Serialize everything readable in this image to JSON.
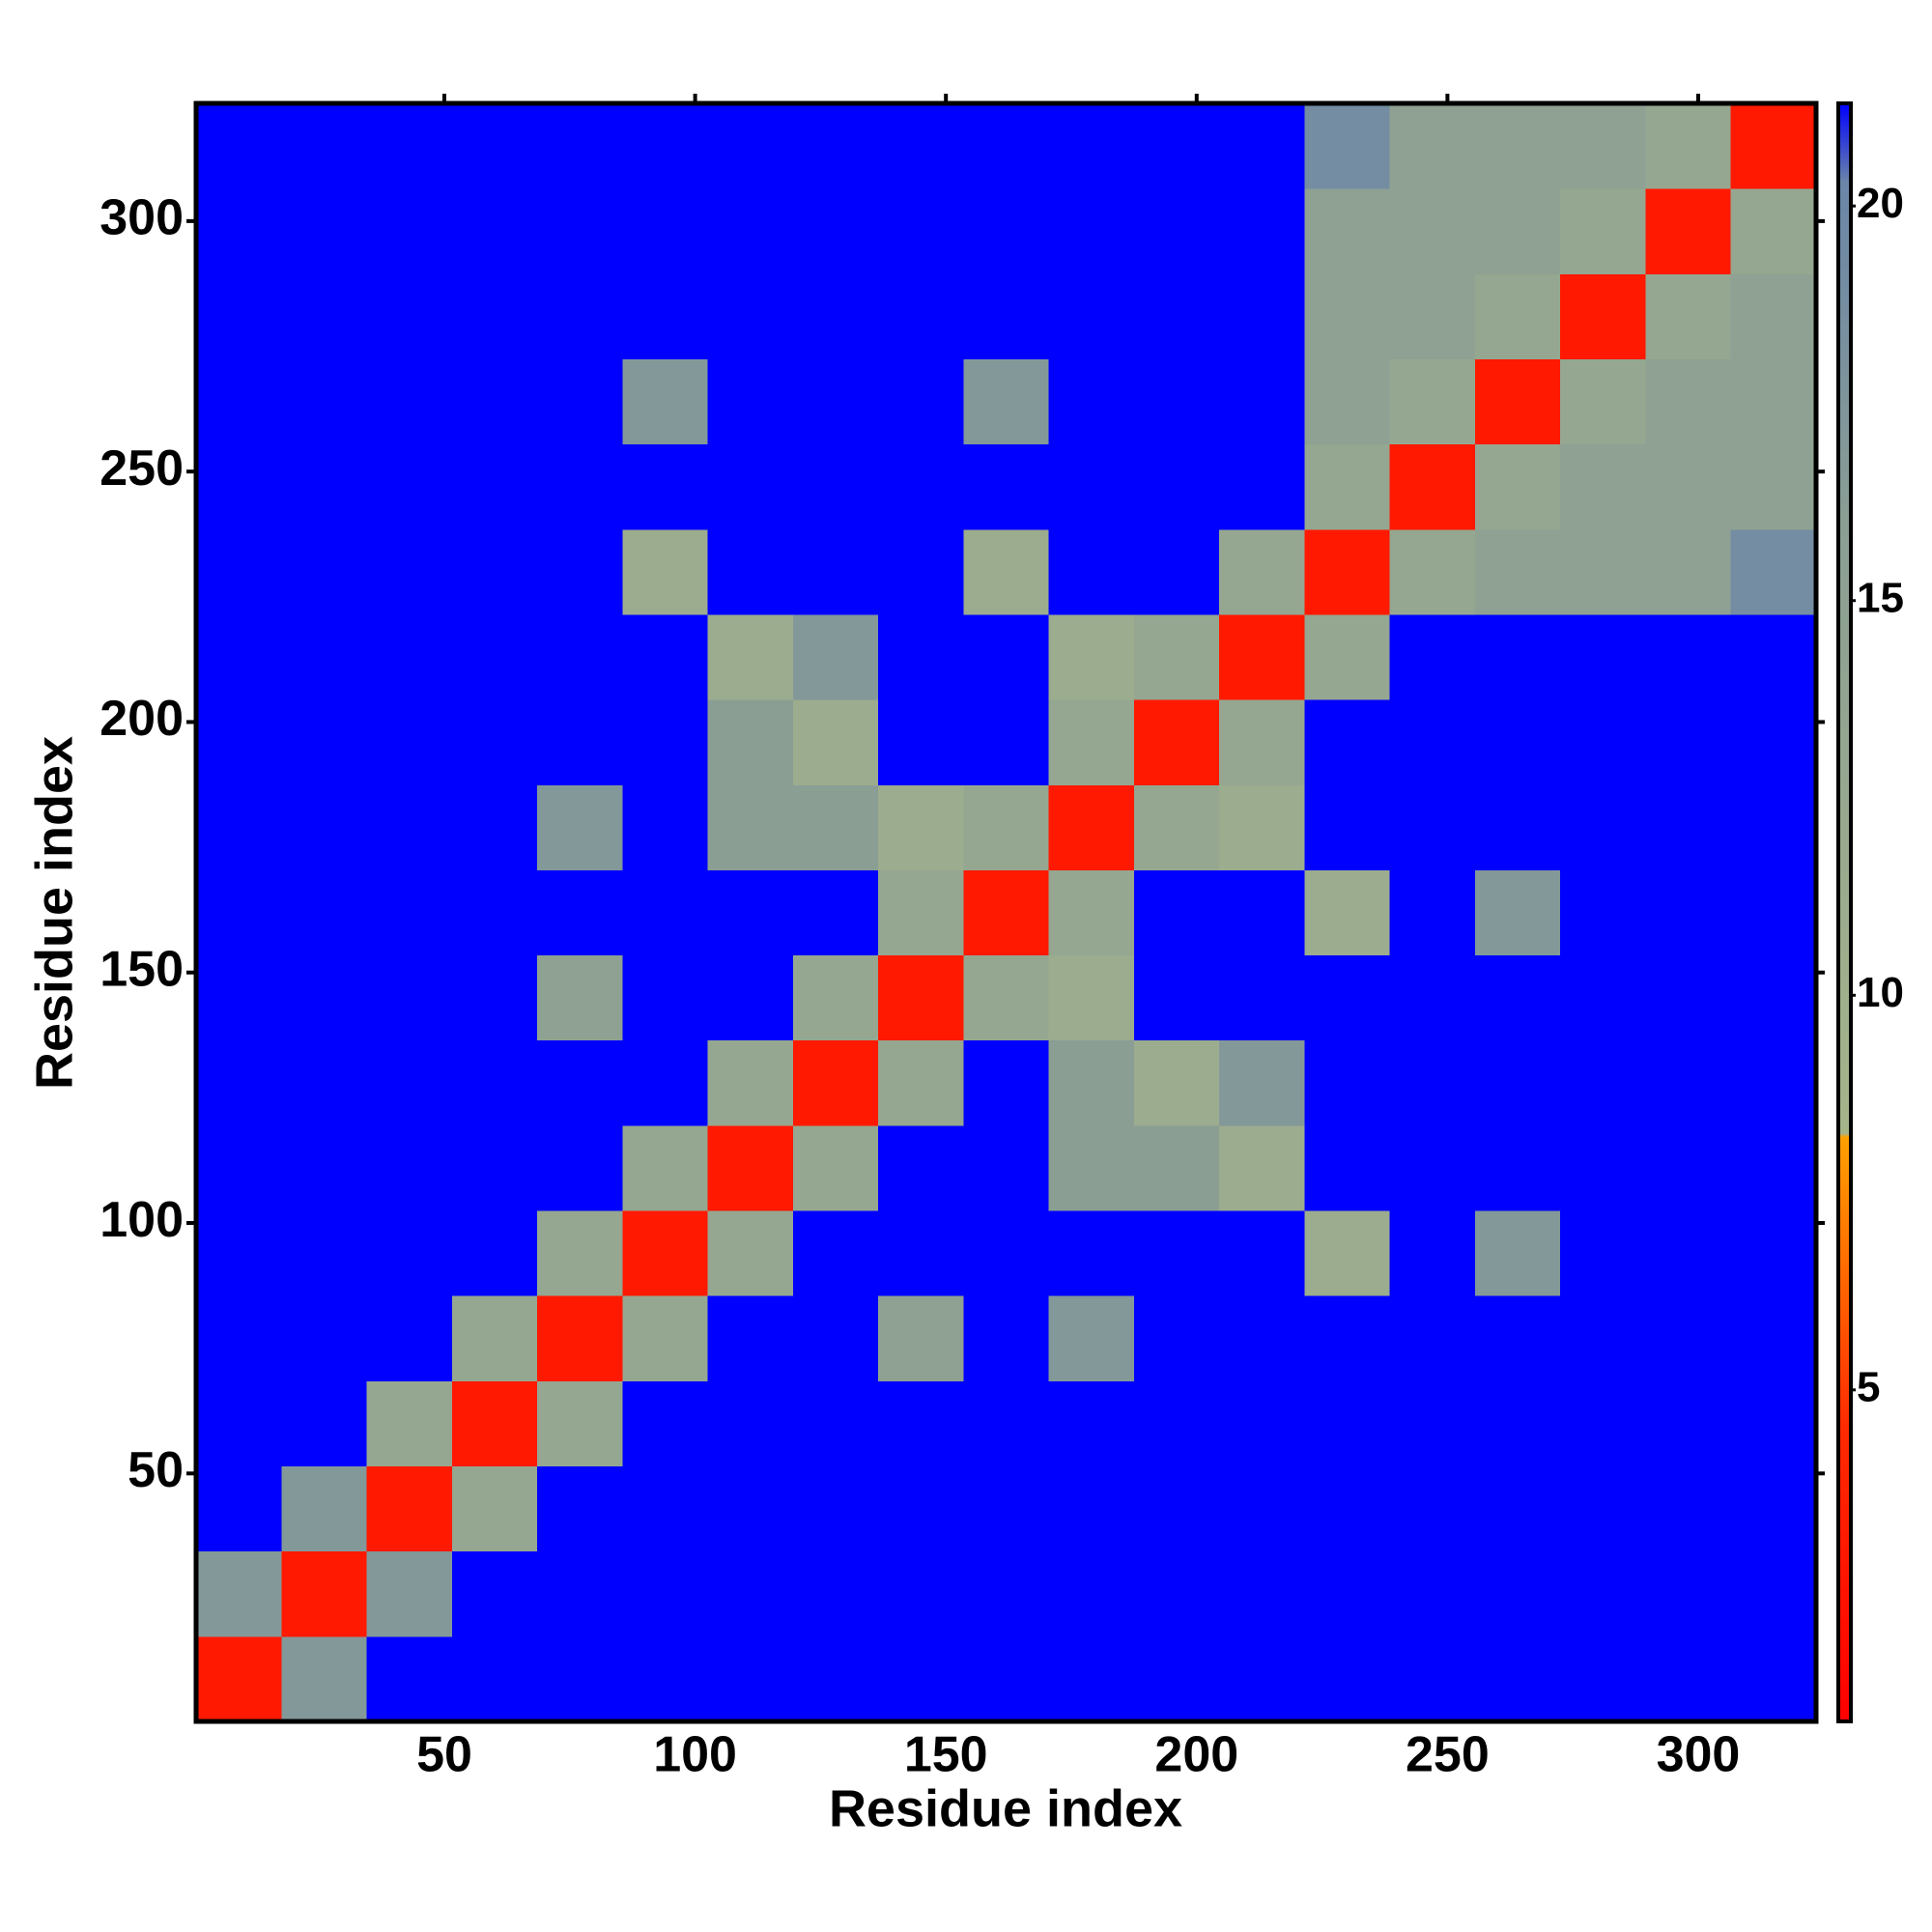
{
  "chart_data": {
    "type": "heatmap",
    "x_label": "Residue index",
    "y_label": "Residue index",
    "xlim": [
      0.5,
      323.5
    ],
    "ylim": [
      0.5,
      323.5
    ],
    "xticks": [
      50,
      100,
      150,
      200,
      250,
      300
    ],
    "yticks": [
      50,
      100,
      150,
      200,
      250,
      300
    ],
    "xbins": [
      0.5,
      17.5,
      34.5,
      51.5,
      68.5,
      85.5,
      102.5,
      119.5,
      136.5,
      153.5,
      170.5,
      187.5,
      204.5,
      221.5,
      238.5,
      255.5,
      272.5,
      289.5,
      306.5,
      323.5
    ],
    "ybins": [
      0.5,
      17.5,
      34.5,
      51.5,
      68.5,
      85.5,
      102.5,
      119.5,
      136.5,
      153.5,
      170.5,
      187.5,
      204.5,
      221.5,
      238.5,
      255.5,
      272.5,
      289.5,
      306.5,
      323.5
    ],
    "zlim": [
      0.8,
      21.3
    ],
    "zticks": [
      5,
      10,
      15,
      20
    ],
    "colorscale": [
      {
        "value": 0.8,
        "color": "#ff0000"
      },
      {
        "value": 4.5,
        "color": "#ff2a00"
      },
      {
        "value": 8.2,
        "color": "#ffa000"
      },
      {
        "value": 8.25,
        "color": "#a6b48a"
      },
      {
        "value": 16,
        "color": "#8a9e94"
      },
      {
        "value": 20.3,
        "color": "#6a85a8"
      },
      {
        "value": 21.3,
        "color": "#0000ff"
      }
    ],
    "z": [
      [
        3,
        17,
        21.3,
        21.3,
        21.3,
        21.3,
        21.3,
        21.3,
        21.3,
        21.3,
        21.3,
        21.3,
        21.3,
        21.3,
        21.3,
        21.3,
        21.3,
        21.3,
        21.3
      ],
      [
        17,
        3,
        17,
        21.3,
        21.3,
        21.3,
        21.3,
        21.3,
        21.3,
        21.3,
        21.3,
        21.3,
        21.3,
        21.3,
        21.3,
        21.3,
        21.3,
        21.3,
        21.3
      ],
      [
        21.3,
        17,
        3,
        13,
        21.3,
        21.3,
        21.3,
        21.3,
        21.3,
        21.3,
        21.3,
        21.3,
        21.3,
        21.3,
        21.3,
        21.3,
        21.3,
        21.3,
        21.3
      ],
      [
        21.3,
        21.3,
        13,
        3,
        13,
        21.3,
        21.3,
        21.3,
        21.3,
        21.3,
        21.3,
        21.3,
        21.3,
        21.3,
        21.3,
        21.3,
        21.3,
        21.3,
        21.3
      ],
      [
        21.3,
        21.3,
        21.3,
        13,
        3,
        13,
        21.3,
        21.3,
        15,
        21.3,
        17,
        21.3,
        21.3,
        21.3,
        21.3,
        21.3,
        21.3,
        21.3,
        21.3
      ],
      [
        21.3,
        21.3,
        21.3,
        21.3,
        13,
        3,
        13,
        21.3,
        21.3,
        21.3,
        21.3,
        21.3,
        21.3,
        11,
        21.3,
        17,
        21.3,
        21.3,
        21.3
      ],
      [
        21.3,
        21.3,
        21.3,
        21.3,
        21.3,
        13,
        3,
        13,
        21.3,
        21.3,
        16,
        16,
        11,
        21.3,
        21.3,
        21.3,
        21.3,
        21.3,
        21.3
      ],
      [
        21.3,
        21.3,
        21.3,
        21.3,
        21.3,
        21.3,
        13,
        3,
        13,
        21.3,
        16,
        11,
        17,
        21.3,
        21.3,
        21.3,
        21.3,
        21.3,
        21.3
      ],
      [
        21.3,
        21.3,
        21.3,
        21.3,
        15,
        21.3,
        21.3,
        13,
        3,
        13,
        11,
        21.3,
        21.3,
        21.3,
        21.3,
        21.3,
        21.3,
        21.3,
        21.3
      ],
      [
        21.3,
        21.3,
        21.3,
        21.3,
        21.3,
        21.3,
        21.3,
        21.3,
        13,
        3,
        13,
        21.3,
        21.3,
        11,
        21.3,
        17,
        21.3,
        21.3,
        21.3
      ],
      [
        21.3,
        21.3,
        21.3,
        21.3,
        17,
        21.3,
        16,
        16,
        11,
        13,
        3,
        13,
        11,
        21.3,
        21.3,
        21.3,
        21.3,
        21.3,
        21.3
      ],
      [
        21.3,
        21.3,
        21.3,
        21.3,
        21.3,
        21.3,
        16,
        11,
        21.3,
        21.3,
        13,
        3,
        13,
        21.3,
        21.3,
        21.3,
        21.3,
        21.3,
        21.3
      ],
      [
        21.3,
        21.3,
        21.3,
        21.3,
        21.3,
        21.3,
        11,
        17,
        21.3,
        21.3,
        11,
        13,
        3,
        13,
        21.3,
        21.3,
        21.3,
        21.3,
        21.3
      ],
      [
        21.3,
        21.3,
        21.3,
        21.3,
        21.3,
        11,
        21.3,
        21.3,
        21.3,
        11,
        21.3,
        21.3,
        13,
        3,
        13,
        15,
        15,
        15,
        19
      ],
      [
        21.3,
        21.3,
        21.3,
        21.3,
        21.3,
        21.3,
        21.3,
        21.3,
        21.3,
        21.3,
        21.3,
        21.3,
        21.3,
        13,
        3,
        13,
        15,
        15,
        15
      ],
      [
        21.3,
        21.3,
        21.3,
        21.3,
        21.3,
        17,
        21.3,
        21.3,
        21.3,
        17,
        21.3,
        21.3,
        21.3,
        15,
        13,
        3,
        13,
        15,
        15
      ],
      [
        21.3,
        21.3,
        21.3,
        21.3,
        21.3,
        21.3,
        21.3,
        21.3,
        21.3,
        21.3,
        21.3,
        21.3,
        21.3,
        15,
        15,
        13,
        3,
        13,
        15
      ],
      [
        21.3,
        21.3,
        21.3,
        21.3,
        21.3,
        21.3,
        21.3,
        21.3,
        21.3,
        21.3,
        21.3,
        21.3,
        21.3,
        15,
        15,
        15,
        13,
        3,
        13
      ],
      [
        21.3,
        21.3,
        21.3,
        21.3,
        21.3,
        21.3,
        21.3,
        21.3,
        21.3,
        21.3,
        21.3,
        21.3,
        21.3,
        19,
        15,
        15,
        15,
        13,
        3
      ]
    ]
  }
}
